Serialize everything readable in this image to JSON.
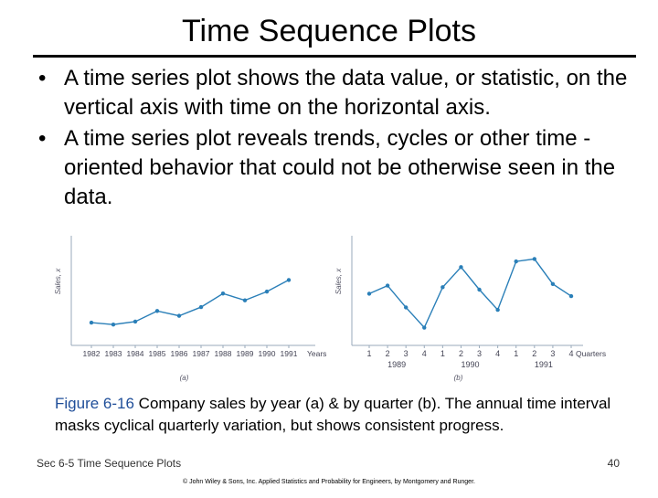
{
  "slide": {
    "title": "Time Sequence Plots",
    "bullets": [
      {
        "marker": "•",
        "text": "A time series plot shows the data value, or statistic, on the vertical axis with time on the horizontal axis."
      },
      {
        "marker": "•",
        "text": "A time series plot reveals trends, cycles or other time -oriented behavior that could not be otherwise seen in the data."
      }
    ],
    "caption_label": "Figure 6-16",
    "caption_text": "Company sales by year (a) & by quarter (b). The annual time interval masks cyclical quarterly variation, but shows consistent progress.",
    "footer_left": "Sec 6-5 Time Sequence Plots",
    "page_number": "40",
    "copyright": "© John Wiley & Sons, Inc. Applied Statistics and Probability for Engineers, by Montgomery and Runger."
  },
  "chart_data": [
    {
      "type": "line",
      "panel_label": "(a)",
      "ylabel": "Sales, x",
      "xlabel": "Years",
      "categories": [
        "1982",
        "1983",
        "1984",
        "1985",
        "1986",
        "1987",
        "1988",
        "1989",
        "1990",
        "1991"
      ],
      "values": [
        1.6,
        1.4,
        1.7,
        2.8,
        2.3,
        3.2,
        4.6,
        3.9,
        4.8,
        6.0
      ],
      "ylim": [
        0,
        10
      ],
      "grid": false,
      "color": "#2a7fb8"
    },
    {
      "type": "line",
      "panel_label": "(b)",
      "ylabel": "Sales, x",
      "xlabel": "Quarters",
      "categories": [
        "1",
        "2",
        "3",
        "4",
        "1",
        "2",
        "3",
        "4",
        "1",
        "2",
        "3",
        "4"
      ],
      "year_labels": [
        "1989",
        "1990",
        "1991"
      ],
      "values": [
        4.5,
        5.5,
        2.8,
        0.3,
        5.3,
        7.8,
        5.0,
        2.5,
        8.5,
        8.8,
        5.7,
        4.2
      ],
      "ylim": [
        -1,
        11
      ],
      "grid": false,
      "color": "#2a7fb8"
    }
  ]
}
